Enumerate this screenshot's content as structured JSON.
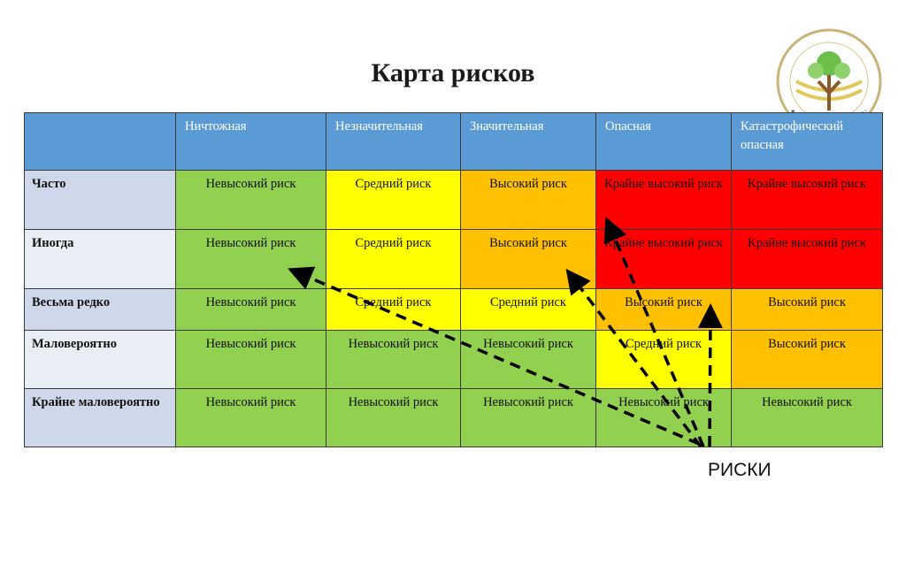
{
  "title": "Карта рисков",
  "table": {
    "columns": [
      "Ничтожная",
      "Незначительная",
      "Значительная",
      "Опасная",
      "Катастрофический опасная"
    ],
    "rows": [
      {
        "label": "Часто",
        "cells": [
          "Невысокий риск",
          "Средний риск",
          "Высокий риск",
          "Крайне высокий риск",
          "Крайне высокий риск"
        ],
        "colors": [
          "#92d050",
          "#ffff00",
          "#ffc000",
          "#ff0000",
          "#ff0000"
        ]
      },
      {
        "label": "Иногда",
        "cells": [
          "Невысокий риск",
          "Средний риск",
          "Высокий риск",
          "Крайне высокий риск",
          "Крайне высокий риск"
        ],
        "colors": [
          "#92d050",
          "#ffff00",
          "#ffc000",
          "#ff0000",
          "#ff0000"
        ]
      },
      {
        "label": "Весьма редко",
        "cells": [
          "Невысокий риск",
          "Средний риск",
          "Средний риск",
          "Высокий риск",
          "Высокий риск"
        ],
        "colors": [
          "#92d050",
          "#ffff00",
          "#ffff00",
          "#ffc000",
          "#ffc000"
        ]
      },
      {
        "label": "Маловероятно",
        "cells": [
          "Невысокий риск",
          "Невысокий риск",
          "Невысокий риск",
          "Средний риск",
          "Высокий риск"
        ],
        "colors": [
          "#92d050",
          "#92d050",
          "#92d050",
          "#ffff00",
          "#ffc000"
        ]
      },
      {
        "label": "Крайне маловероятно",
        "cells": [
          "Невысокий риск",
          "Невысокий риск",
          "Невысокий риск",
          "Невысокий риск",
          "Невысокий риск"
        ],
        "colors": [
          "#92d050",
          "#92d050",
          "#92d050",
          "#92d050",
          "#92d050"
        ]
      }
    ]
  },
  "annotation": "РИСКИ"
}
